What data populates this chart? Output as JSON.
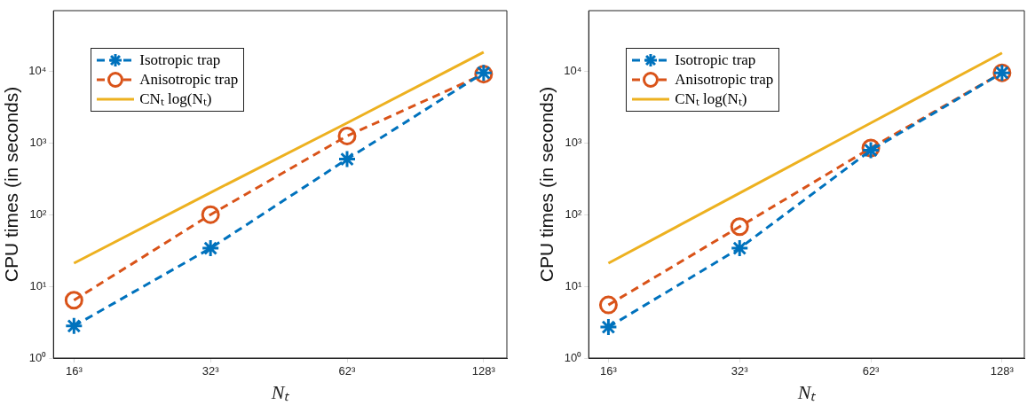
{
  "chart_data": [
    {
      "type": "line",
      "xlabel": "Nₜ",
      "ylabel": "CPU times (in seconds)",
      "categories": [
        "16³",
        "32³",
        "62³",
        "128³"
      ],
      "log": "y",
      "ylim": [
        1,
        70000
      ],
      "yticks": [
        {
          "value": 1,
          "label": "10⁰"
        },
        {
          "value": 10,
          "label": "10¹"
        },
        {
          "value": 100,
          "label": "10²"
        },
        {
          "value": 1000,
          "label": "10³"
        },
        {
          "value": 10000,
          "label": "10⁴"
        }
      ],
      "legend": "top left",
      "grid": false,
      "series": [
        {
          "name": "Isotropic trap",
          "color": "#0072bd",
          "marker": "cross",
          "line_style": "dashed",
          "values": [
            2.8,
            34,
            594,
            9500
          ]
        },
        {
          "name": "Anisotropic trap",
          "color": "#d95319",
          "marker": "circle",
          "line_style": "dashed",
          "values": [
            6.4,
            100,
            1250,
            9100
          ]
        },
        {
          "name": "CNₜ log(Nₜ)",
          "color": "#edb120",
          "marker": "none",
          "line_style": "solid",
          "values": [
            21,
            203,
            1900,
            18400
          ]
        }
      ]
    },
    {
      "type": "line",
      "xlabel": "Nₜ",
      "ylabel": "CPU times (in seconds)",
      "categories": [
        "16³",
        "32³",
        "62³",
        "128³"
      ],
      "log": "y",
      "ylim": [
        1,
        70000
      ],
      "yticks": [
        {
          "value": 1,
          "label": "10⁰"
        },
        {
          "value": 10,
          "label": "10¹"
        },
        {
          "value": 100,
          "label": "10²"
        },
        {
          "value": 1000,
          "label": "10³"
        },
        {
          "value": 10000,
          "label": "10⁴"
        }
      ],
      "legend": "top left",
      "grid": false,
      "series": [
        {
          "name": "Isotropic trap",
          "color": "#0072bd",
          "marker": "cross",
          "line_style": "dashed",
          "values": [
            2.7,
            34,
            790,
            9500
          ]
        },
        {
          "name": "Anisotropic trap",
          "color": "#d95319",
          "marker": "circle",
          "line_style": "dashed",
          "values": [
            5.5,
            68,
            850,
            9500
          ]
        },
        {
          "name": "CNₜ log(Nₜ)",
          "color": "#edb120",
          "marker": "none",
          "line_style": "solid",
          "values": [
            21,
            200,
            1900,
            18000
          ]
        }
      ]
    }
  ]
}
